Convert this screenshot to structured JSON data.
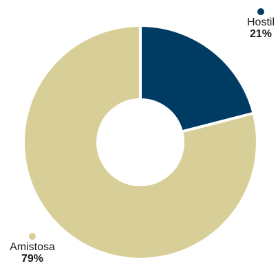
{
  "chart_data": {
    "type": "donut",
    "title": "",
    "slices": [
      {
        "label": "Hostil",
        "value_label": "21%",
        "value": 21,
        "color": "#003B63"
      },
      {
        "label": "Amistosa",
        "value_label": "79%",
        "value": 79,
        "color": "#D8CF98"
      }
    ],
    "start": "12 o'clock",
    "direction": "clockwise",
    "legend": "callout labels beside slices"
  }
}
